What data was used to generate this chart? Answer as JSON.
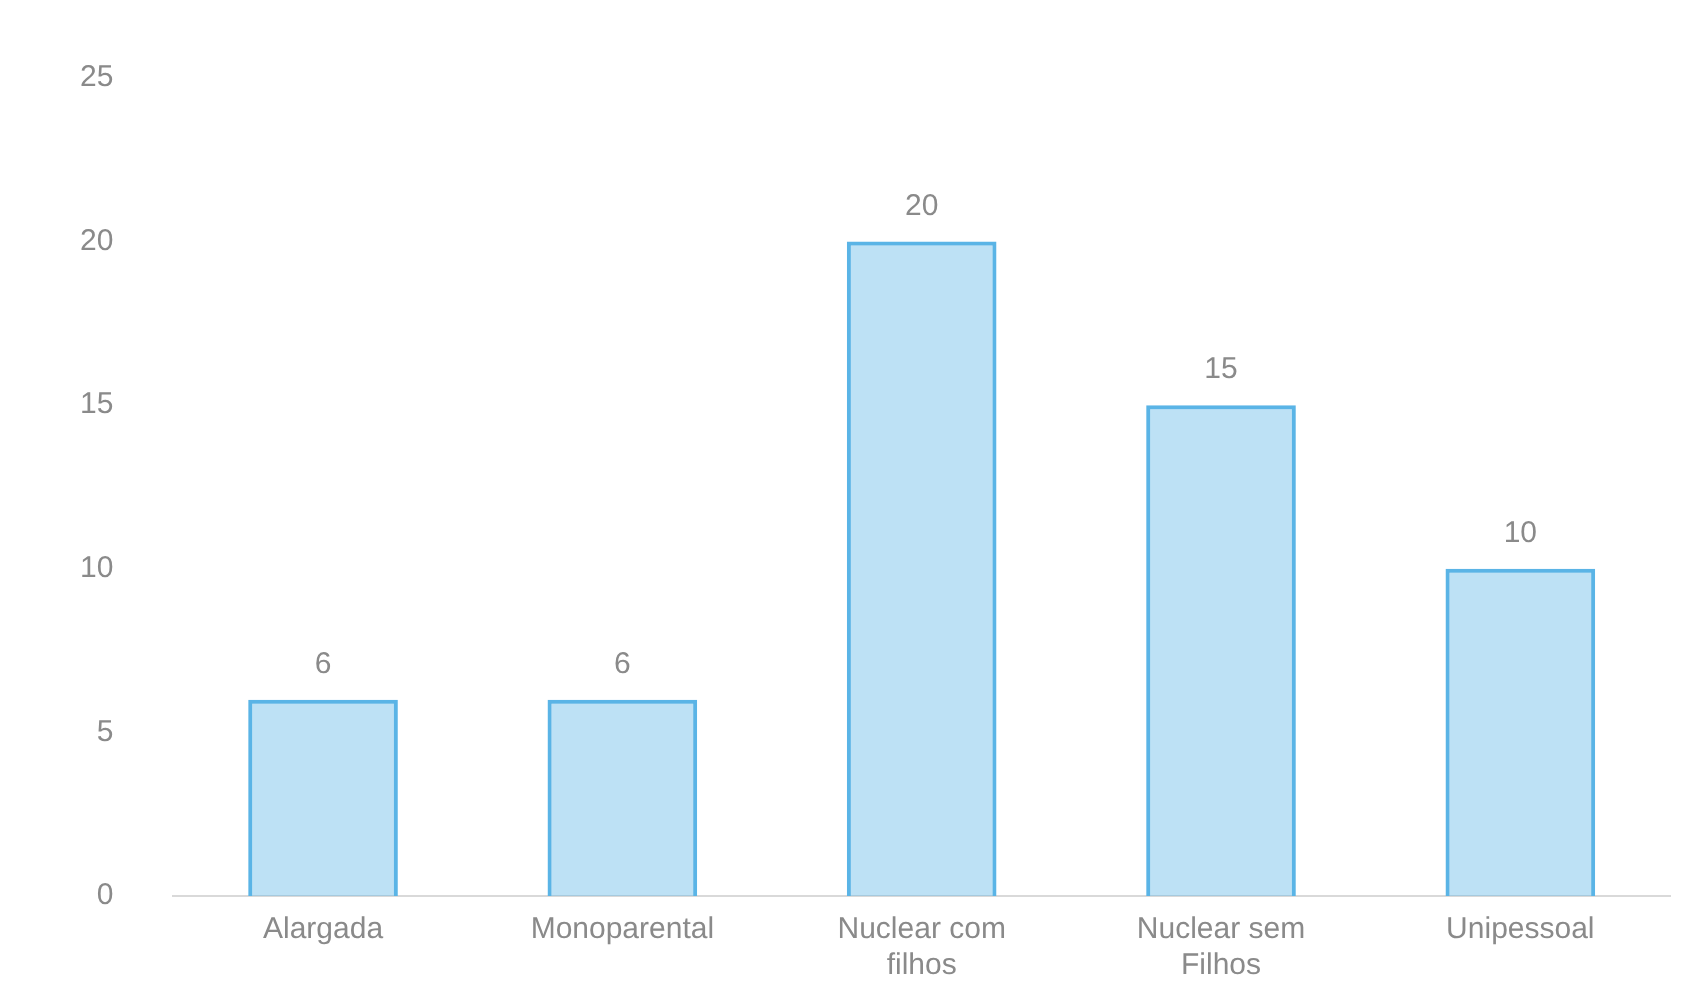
{
  "chart_data": {
    "type": "bar",
    "categories": [
      "Alargada",
      "Monoparental",
      "Nuclear com filhos",
      "Nuclear sem Filhos",
      "Unipessoal"
    ],
    "values": [
      6,
      6,
      20,
      15,
      10
    ],
    "color": "#5ab4e6",
    "ylim": [
      0,
      25
    ],
    "yticks": [
      0,
      5,
      10,
      15,
      20,
      25
    ],
    "grid": false,
    "legend": false,
    "data_labels": true
  }
}
